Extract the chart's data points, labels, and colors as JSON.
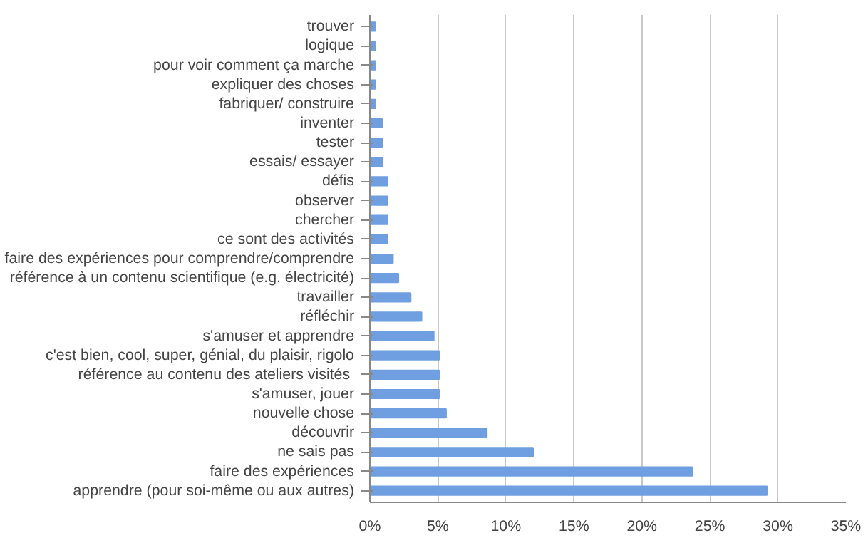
{
  "chart_data": {
    "type": "bar",
    "orientation": "horizontal",
    "categories": [
      "trouver",
      "logique",
      "pour voir comment ça marche",
      "expliquer des choses",
      "fabriquer/ construire",
      "inventer",
      "tester",
      "essais/ essayer",
      "défis",
      "observer",
      "chercher",
      "ce sont des activités",
      "faire des expériences pour comprendre/comprendre",
      "référence à un contenu scientifique (e.g. électricité)",
      "travailler",
      "réfléchir",
      "s'amuser et apprendre",
      "c'est bien, cool, super, génial, du plaisir, rigolo",
      "référence au contenu des ateliers visités ",
      "s'amuser, jouer",
      "nouvelle chose",
      "découvrir",
      "ne sais pas",
      "faire des expériences",
      "apprendre (pour soi-même ou aux autres)"
    ],
    "values": [
      0.4,
      0.4,
      0.4,
      0.4,
      0.4,
      0.9,
      0.9,
      0.9,
      1.3,
      1.3,
      1.3,
      1.3,
      1.7,
      2.1,
      3.0,
      3.8,
      4.7,
      5.1,
      5.1,
      5.1,
      5.6,
      8.6,
      12.0,
      23.7,
      29.2
    ],
    "color": "#6f9fe0",
    "xlim": [
      0,
      35
    ],
    "xticks": [
      {
        "value": 0,
        "label": "0%"
      },
      {
        "value": 5,
        "label": "5%"
      },
      {
        "value": 10,
        "label": "10%"
      },
      {
        "value": 15,
        "label": "15%"
      },
      {
        "value": 20,
        "label": "20%"
      },
      {
        "value": 25,
        "label": "25%"
      },
      {
        "value": 30,
        "label": "30%"
      },
      {
        "value": 35,
        "label": "35%"
      }
    ],
    "grid": "x"
  }
}
